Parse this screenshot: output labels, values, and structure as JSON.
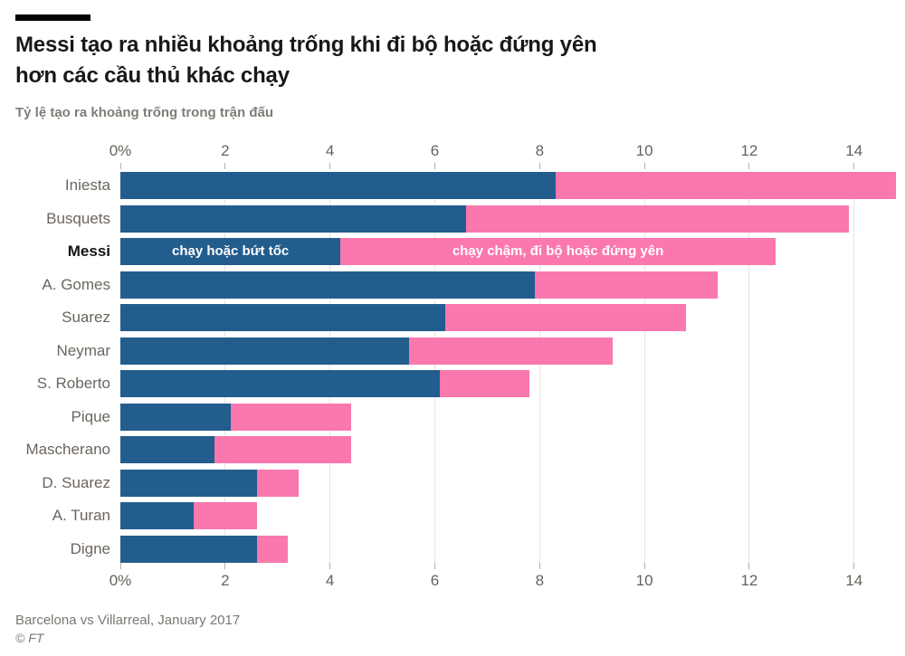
{
  "header": {
    "title_line1": "Messi tạo ra nhiều khoảng trống khi đi bộ hoặc đứng yên",
    "title_line2": "hơn các cầu thủ khác chạy",
    "subtitle": "Tỷ lệ tạo ra khoảng trống trong trận đấu"
  },
  "chart_data": {
    "type": "bar",
    "orientation": "horizontal",
    "stacked": true,
    "categories": [
      "Iniesta",
      "Busquets",
      "Messi",
      "A. Gomes",
      "Suarez",
      "Neymar",
      "S. Roberto",
      "Pique",
      "Mascherano",
      "D. Suarez",
      "A. Turan",
      "Digne"
    ],
    "highlight_category": "Messi",
    "inline_labels_row": "Messi",
    "series": [
      {
        "name": "chạy hoặc bứt tốc",
        "color": "#235d8e",
        "values": [
          8.3,
          6.6,
          4.2,
          7.9,
          6.2,
          5.5,
          6.1,
          2.1,
          1.8,
          2.6,
          1.4,
          2.6
        ]
      },
      {
        "name": "chạy chậm, đi bộ hoặc đứng yên",
        "color": "#fa78ae",
        "values": [
          6.5,
          7.3,
          8.3,
          3.5,
          4.6,
          3.9,
          1.7,
          2.3,
          2.6,
          0.8,
          1.2,
          0.6
        ]
      }
    ],
    "totals": [
      14.8,
      13.9,
      12.5,
      11.4,
      10.8,
      9.4,
      7.8,
      4.4,
      4.4,
      3.4,
      2.6,
      3.2
    ],
    "x_ticks": [
      "0%",
      "2",
      "4",
      "6",
      "8",
      "10",
      "12",
      "14"
    ],
    "x_tick_values": [
      0,
      2,
      4,
      6,
      8,
      10,
      12,
      14
    ],
    "xlim": [
      0,
      14.85
    ],
    "grid": true,
    "grid_color": "#ece4da"
  },
  "footer": {
    "source": "Barcelona vs Villarreal, January 2017",
    "credit": "© FT"
  }
}
